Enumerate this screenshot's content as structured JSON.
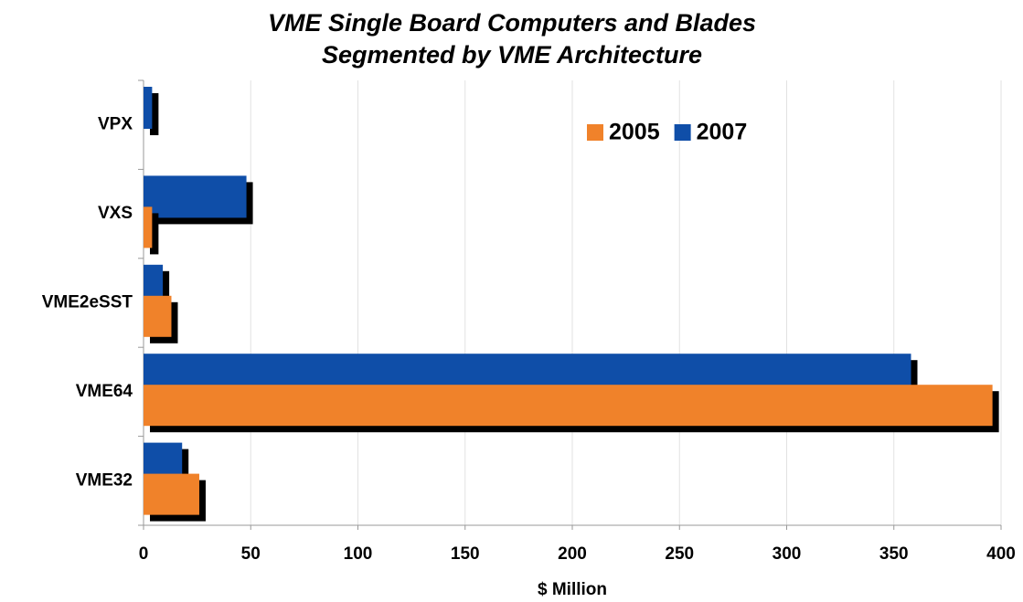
{
  "chart_data": {
    "type": "hbar",
    "title": "VME Single Board Computers and Blades",
    "subtitle": "Segmented by VME Architecture",
    "x_label": "$ Million",
    "categories": [
      "VPX",
      "VXS",
      "VME2eSST",
      "VME64",
      "VME32"
    ],
    "series": [
      {
        "name": "2005",
        "color": "#f0822a",
        "values": [
          0,
          4,
          13,
          396,
          26
        ]
      },
      {
        "name": "2007",
        "color": "#0f4ea8",
        "values": [
          4,
          48,
          9,
          358,
          18
        ]
      }
    ],
    "xlim": [
      0,
      400
    ],
    "xticks": [
      0,
      50,
      100,
      150,
      200,
      250,
      300,
      350,
      400
    ],
    "grid": true,
    "legend": "top-right"
  }
}
